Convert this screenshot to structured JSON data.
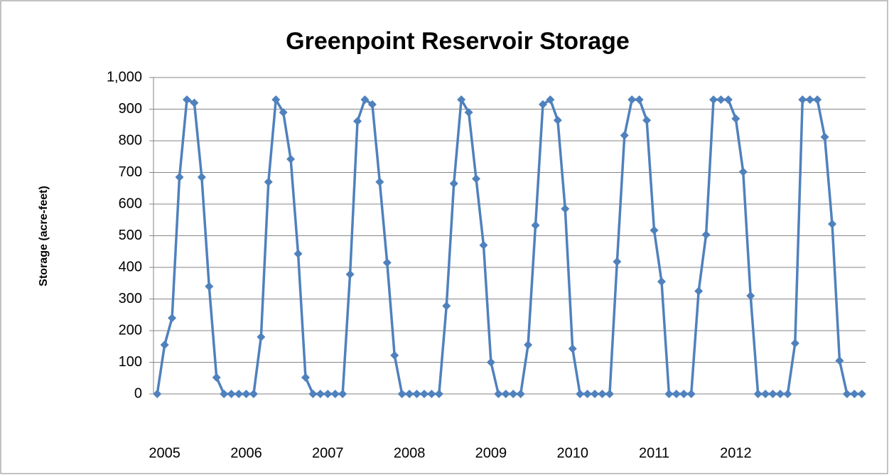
{
  "chart_data": {
    "type": "line",
    "title": "Greenpoint Reservoir Storage",
    "y_label": "Storage (acre-feet)",
    "categories": [
      null,
      "2005",
      null,
      null,
      null,
      null,
      null,
      null,
      null,
      null,
      null,
      null,
      "2006",
      null,
      null,
      null,
      null,
      null,
      null,
      null,
      null,
      null,
      null,
      "2007",
      null,
      null,
      null,
      null,
      null,
      null,
      null,
      null,
      null,
      null,
      "2008",
      null,
      null,
      null,
      null,
      null,
      null,
      null,
      null,
      null,
      null,
      "2009",
      null,
      null,
      null,
      null,
      null,
      null,
      null,
      null,
      null,
      null,
      "2010",
      null,
      null,
      null,
      null,
      null,
      null,
      null,
      null,
      null,
      null,
      "2011",
      null,
      null,
      null,
      null,
      null,
      null,
      null,
      null,
      null,
      null,
      "2012",
      null,
      null,
      null,
      null,
      null,
      null,
      null,
      null,
      null,
      null,
      null,
      null,
      null,
      null,
      null,
      null,
      null
    ],
    "series": [
      {
        "name": "Storage",
        "color": "#4f81bd",
        "values": [
          0,
          155,
          240,
          685,
          930,
          920,
          685,
          340,
          52,
          0,
          0,
          0,
          0,
          0,
          180,
          670,
          930,
          890,
          742,
          443,
          52,
          0,
          0,
          0,
          0,
          0,
          378,
          862,
          930,
          915,
          670,
          415,
          122,
          0,
          0,
          0,
          0,
          0,
          0,
          278,
          665,
          930,
          890,
          680,
          470,
          100,
          0,
          0,
          0,
          0,
          155,
          533,
          915,
          930,
          865,
          585,
          143,
          0,
          0,
          0,
          0,
          0,
          418,
          817,
          930,
          930,
          865,
          517,
          355,
          0,
          0,
          0,
          0,
          325,
          503,
          930,
          930,
          930,
          870,
          702,
          310,
          0,
          0,
          0,
          0,
          0,
          160,
          930,
          930,
          930,
          812,
          537,
          105,
          0,
          0,
          0
        ]
      }
    ],
    "ylim": [
      0,
      1000
    ],
    "yticks": [
      0,
      100,
      200,
      300,
      400,
      500,
      600,
      700,
      800,
      900,
      {
        "value": 1000,
        "label": "1,000"
      }
    ],
    "grid": true
  }
}
